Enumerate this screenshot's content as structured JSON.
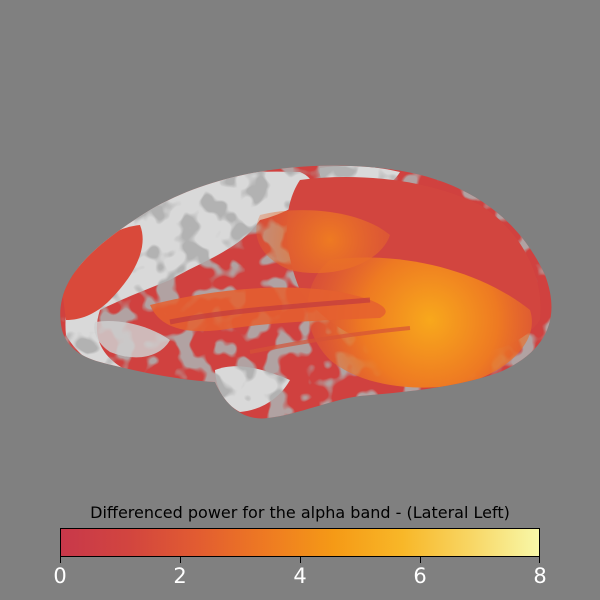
{
  "title": "Differenced power for the alpha band - (Lateral Left)",
  "colors": {
    "background": "#808080",
    "gyri": "#d9d9d9",
    "sulci": "#6b6b6b",
    "low": "#c8384a",
    "mid": "#e8632c",
    "high": "#f9a21b",
    "top": "#f8f8a8"
  },
  "colorbar": {
    "min": 0,
    "max": 8,
    "colormap": [
      "#c8384a",
      "#d2453f",
      "#e25c31",
      "#ee7a22",
      "#f59a16",
      "#f8b728",
      "#f8d664",
      "#f8f8a8"
    ],
    "ticks": [
      "0",
      "2",
      "4",
      "6",
      "8"
    ]
  }
}
